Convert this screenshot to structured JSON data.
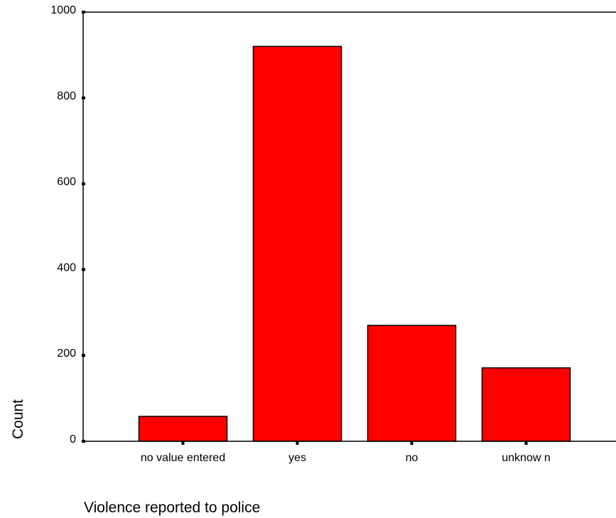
{
  "chart_data": {
    "type": "bar",
    "xlabel": "Violence reported to police",
    "ylabel": "Count",
    "categories": [
      "no value entered",
      "yes",
      "no",
      "unknow n"
    ],
    "values": [
      58,
      920,
      270,
      171
    ],
    "ylim": [
      0,
      1000
    ],
    "yticks": [
      0,
      200,
      400,
      600,
      800,
      1000
    ],
    "bar_color": "#ff0000",
    "grid": false
  }
}
